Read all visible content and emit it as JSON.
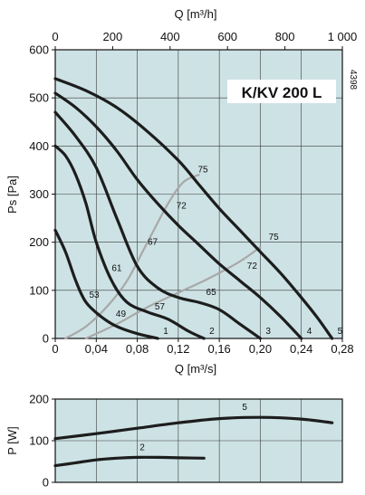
{
  "chart_data": [
    {
      "type": "line",
      "title": "K/KV 200 L",
      "code": "4398",
      "xlabel": "Q [m³/s]",
      "x2label": "Q [m³/h]",
      "ylabel": "Ps [Pa]",
      "xlim": [
        0,
        0.28
      ],
      "x2lim": [
        0,
        1000
      ],
      "ylim": [
        0,
        600
      ],
      "xticks": [
        "0",
        "0,04",
        "0,08",
        "0,12",
        "0,16",
        "0,20",
        "0,24",
        "0,28"
      ],
      "x2ticks": [
        "0",
        "200",
        "400",
        "600",
        "800",
        "1 000"
      ],
      "yticks": [
        "0",
        "100",
        "200",
        "300",
        "400",
        "500",
        "600"
      ],
      "grid": true,
      "background": "#cde2e4",
      "series": [
        {
          "name": "1",
          "x": [
            0,
            0.01,
            0.02,
            0.03,
            0.045,
            0.06,
            0.08,
            0.1
          ],
          "y": [
            225,
            180,
            120,
            75,
            45,
            25,
            10,
            0
          ]
        },
        {
          "name": "2",
          "x": [
            0,
            0.01,
            0.02,
            0.03,
            0.04,
            0.055,
            0.07,
            0.09,
            0.11,
            0.13,
            0.145
          ],
          "y": [
            400,
            380,
            340,
            280,
            200,
            120,
            75,
            55,
            40,
            15,
            0
          ]
        },
        {
          "name": "3",
          "x": [
            0,
            0.02,
            0.04,
            0.06,
            0.08,
            0.1,
            0.12,
            0.14,
            0.16,
            0.18,
            0.2
          ],
          "y": [
            470,
            420,
            355,
            250,
            150,
            105,
            85,
            75,
            60,
            30,
            0
          ]
        },
        {
          "name": "4",
          "x": [
            0,
            0.02,
            0.04,
            0.06,
            0.08,
            0.1,
            0.12,
            0.14,
            0.16,
            0.18,
            0.2,
            0.22,
            0.24
          ],
          "y": [
            510,
            480,
            440,
            390,
            330,
            280,
            235,
            195,
            155,
            120,
            85,
            45,
            0
          ]
        },
        {
          "name": "5",
          "x": [
            0,
            0.03,
            0.06,
            0.09,
            0.12,
            0.14,
            0.16,
            0.18,
            0.2,
            0.22,
            0.24,
            0.255,
            0.27
          ],
          "y": [
            540,
            515,
            480,
            430,
            370,
            320,
            270,
            225,
            180,
            135,
            85,
            45,
            0
          ]
        }
      ],
      "efficiency_lines": [
        {
          "x": [
            0.01,
            0.03,
            0.05,
            0.07,
            0.09,
            0.11,
            0.125,
            0.14
          ],
          "y": [
            0,
            25,
            65,
            120,
            200,
            280,
            325,
            340
          ]
        },
        {
          "x": [
            0.03,
            0.06,
            0.09,
            0.12,
            0.15,
            0.18,
            0.2
          ],
          "y": [
            0,
            30,
            65,
            95,
            125,
            160,
            190
          ]
        }
      ],
      "efficiency_labels": [
        {
          "text": "75",
          "x": 0.144,
          "y": 345
        },
        {
          "text": "72",
          "x": 0.123,
          "y": 270
        },
        {
          "text": "67",
          "x": 0.095,
          "y": 195
        },
        {
          "text": "61",
          "x": 0.06,
          "y": 140
        },
        {
          "text": "53",
          "x": 0.038,
          "y": 85
        },
        {
          "text": "49",
          "x": 0.064,
          "y": 45
        },
        {
          "text": "57",
          "x": 0.102,
          "y": 60
        },
        {
          "text": "65",
          "x": 0.152,
          "y": 90
        },
        {
          "text": "72",
          "x": 0.192,
          "y": 145
        },
        {
          "text": "75",
          "x": 0.213,
          "y": 205
        }
      ]
    },
    {
      "type": "line",
      "xlim": [
        0,
        0.28
      ],
      "ylabel": "P [W]",
      "ylim": [
        0,
        200
      ],
      "yticks": [
        "0",
        "100",
        "200"
      ],
      "grid": true,
      "background": "#cde2e4",
      "series": [
        {
          "name": "5",
          "x": [
            0,
            0.04,
            0.08,
            0.12,
            0.16,
            0.2,
            0.24,
            0.27
          ],
          "y": [
            105,
            117,
            130,
            143,
            153,
            156,
            152,
            143
          ]
        },
        {
          "name": "2",
          "x": [
            0,
            0.02,
            0.04,
            0.06,
            0.08,
            0.1,
            0.12,
            0.145
          ],
          "y": [
            40,
            47,
            54,
            58,
            60,
            60,
            59,
            58
          ]
        }
      ]
    }
  ]
}
